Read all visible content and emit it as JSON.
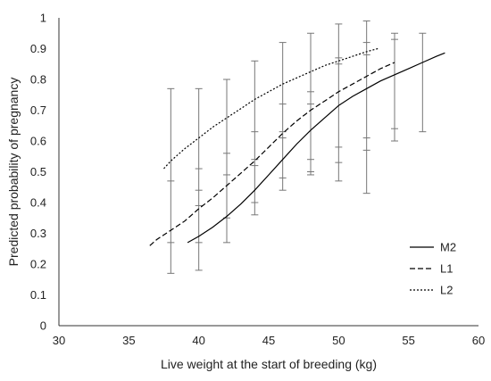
{
  "chart_data": {
    "type": "line",
    "title": "",
    "xlabel": "Live weight at the start of breeding (kg)",
    "ylabel": "Predicted probability of pregnancy",
    "xlim": [
      30,
      60
    ],
    "ylim": [
      0,
      1
    ],
    "x_ticks": [
      30,
      35,
      40,
      45,
      50,
      55,
      60
    ],
    "x_tick_labels": [
      "30",
      "35",
      "40",
      "45",
      "50",
      "55",
      "60"
    ],
    "y_ticks": [
      0,
      0.1,
      0.2,
      0.3,
      0.4,
      0.5,
      0.6,
      0.7,
      0.8,
      0.9,
      1
    ],
    "y_tick_labels": [
      "0",
      "0.1",
      "0.2",
      "0.3",
      "0.4",
      "0.5",
      "0.6",
      "0.7",
      "0.8",
      "0.9",
      "1"
    ],
    "grid": false,
    "legend": {
      "placement": "right-lower"
    },
    "series": [
      {
        "name": "M2",
        "dash": "solid",
        "color": "#000000",
        "points": [
          [
            39.2,
            0.27
          ],
          [
            40,
            0.29
          ],
          [
            41,
            0.32
          ],
          [
            42,
            0.355
          ],
          [
            43,
            0.395
          ],
          [
            44,
            0.44
          ],
          [
            45,
            0.49
          ],
          [
            46,
            0.54
          ],
          [
            47,
            0.59
          ],
          [
            48,
            0.635
          ],
          [
            49,
            0.675
          ],
          [
            50,
            0.715
          ],
          [
            51,
            0.745
          ],
          [
            52,
            0.77
          ],
          [
            53,
            0.795
          ],
          [
            54,
            0.815
          ],
          [
            55,
            0.835
          ],
          [
            56,
            0.855
          ],
          [
            57,
            0.875
          ],
          [
            57.6,
            0.886
          ]
        ]
      },
      {
        "name": "L1",
        "dash": "dashed",
        "color": "#000000",
        "points": [
          [
            36.5,
            0.26
          ],
          [
            37,
            0.28
          ],
          [
            38,
            0.31
          ],
          [
            39,
            0.34
          ],
          [
            40,
            0.38
          ],
          [
            41,
            0.415
          ],
          [
            42,
            0.455
          ],
          [
            43,
            0.495
          ],
          [
            44,
            0.535
          ],
          [
            45,
            0.58
          ],
          [
            46,
            0.625
          ],
          [
            47,
            0.665
          ],
          [
            48,
            0.7
          ],
          [
            49,
            0.73
          ],
          [
            50,
            0.76
          ],
          [
            51,
            0.785
          ],
          [
            52,
            0.81
          ],
          [
            53,
            0.835
          ],
          [
            54,
            0.855
          ]
        ]
      },
      {
        "name": "L2",
        "dash": "dotted",
        "color": "#000000",
        "points": [
          [
            37.5,
            0.51
          ],
          [
            38,
            0.535
          ],
          [
            39,
            0.575
          ],
          [
            40,
            0.61
          ],
          [
            41,
            0.645
          ],
          [
            42,
            0.675
          ],
          [
            43,
            0.705
          ],
          [
            44,
            0.735
          ],
          [
            45,
            0.76
          ],
          [
            46,
            0.785
          ],
          [
            47,
            0.805
          ],
          [
            48,
            0.825
          ],
          [
            49,
            0.845
          ],
          [
            50,
            0.86
          ],
          [
            51,
            0.875
          ],
          [
            52,
            0.89
          ],
          [
            52.8,
            0.9
          ]
        ]
      }
    ],
    "error_bars": [
      {
        "x": 38,
        "low": 0.17,
        "high": 0.77,
        "marks": [
          0.47,
          0.27
        ]
      },
      {
        "x": 40,
        "low": 0.18,
        "high": 0.77,
        "marks": [
          0.51,
          0.44,
          0.39,
          0.27
        ]
      },
      {
        "x": 42,
        "low": 0.27,
        "high": 0.8,
        "marks": [
          0.56,
          0.49,
          0.35
        ]
      },
      {
        "x": 44,
        "low": 0.36,
        "high": 0.86,
        "marks": [
          0.63,
          0.54,
          0.52,
          0.4
        ]
      },
      {
        "x": 46,
        "low": 0.44,
        "high": 0.92,
        "marks": [
          0.72,
          0.63,
          0.61,
          0.48
        ]
      },
      {
        "x": 48,
        "low": 0.49,
        "high": 0.95,
        "marks": [
          0.76,
          0.72,
          0.54,
          0.5
        ]
      },
      {
        "x": 50,
        "low": 0.47,
        "high": 0.98,
        "marks": [
          0.87,
          0.85,
          0.58,
          0.53
        ]
      },
      {
        "x": 52,
        "low": 0.43,
        "high": 0.99,
        "marks": [
          0.92,
          0.88,
          0.61,
          0.57
        ]
      },
      {
        "x": 54,
        "low": 0.6,
        "high": 0.95,
        "marks": [
          0.93,
          0.64
        ]
      },
      {
        "x": 56,
        "low": 0.63,
        "high": 0.95,
        "marks": []
      }
    ]
  }
}
